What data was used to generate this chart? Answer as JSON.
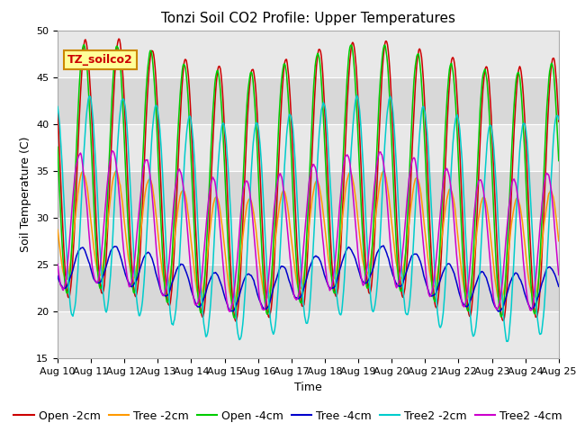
{
  "title": "Tonzi Soil CO2 Profile: Upper Temperatures",
  "xlabel": "Time",
  "ylabel": "Soil Temperature (C)",
  "ylim": [
    15,
    50
  ],
  "x_tick_labels": [
    "Aug 10",
    "Aug 11",
    "Aug 12",
    "Aug 13",
    "Aug 14",
    "Aug 15",
    "Aug 16",
    "Aug 17",
    "Aug 18",
    "Aug 19",
    "Aug 20",
    "Aug 21",
    "Aug 22",
    "Aug 23",
    "Aug 24",
    "Aug 25"
  ],
  "yticks": [
    15,
    20,
    25,
    30,
    35,
    40,
    45,
    50
  ],
  "watermark_text": "TZ_soilco2",
  "watermark_color": "#cc0000",
  "watermark_bg": "#ffff99",
  "watermark_border": "#cc8800",
  "plot_bg_light": "#e8e8e8",
  "plot_bg_dark": "#d0d0d0",
  "title_fontsize": 11,
  "label_fontsize": 9,
  "tick_fontsize": 8,
  "legend_fontsize": 9,
  "series_colors": [
    "#cc0000",
    "#ff9900",
    "#00cc00",
    "#0000cc",
    "#00cccc",
    "#cc00cc"
  ],
  "series_names": [
    "Open -2cm",
    "Tree -2cm",
    "Open -4cm",
    "Tree -4cm",
    "Tree2 -2cm",
    "Tree2 -4cm"
  ],
  "series_means": [
    34.0,
    28.0,
    34.0,
    23.5,
    30.0,
    28.5
  ],
  "series_amps": [
    13.5,
    5.5,
    13.0,
    2.0,
    11.5,
    7.0
  ],
  "series_phases": [
    0.0,
    0.08,
    0.05,
    0.12,
    -0.12,
    0.18
  ],
  "series_noises": [
    0.25,
    0.2,
    0.25,
    0.15,
    0.35,
    0.3
  ]
}
